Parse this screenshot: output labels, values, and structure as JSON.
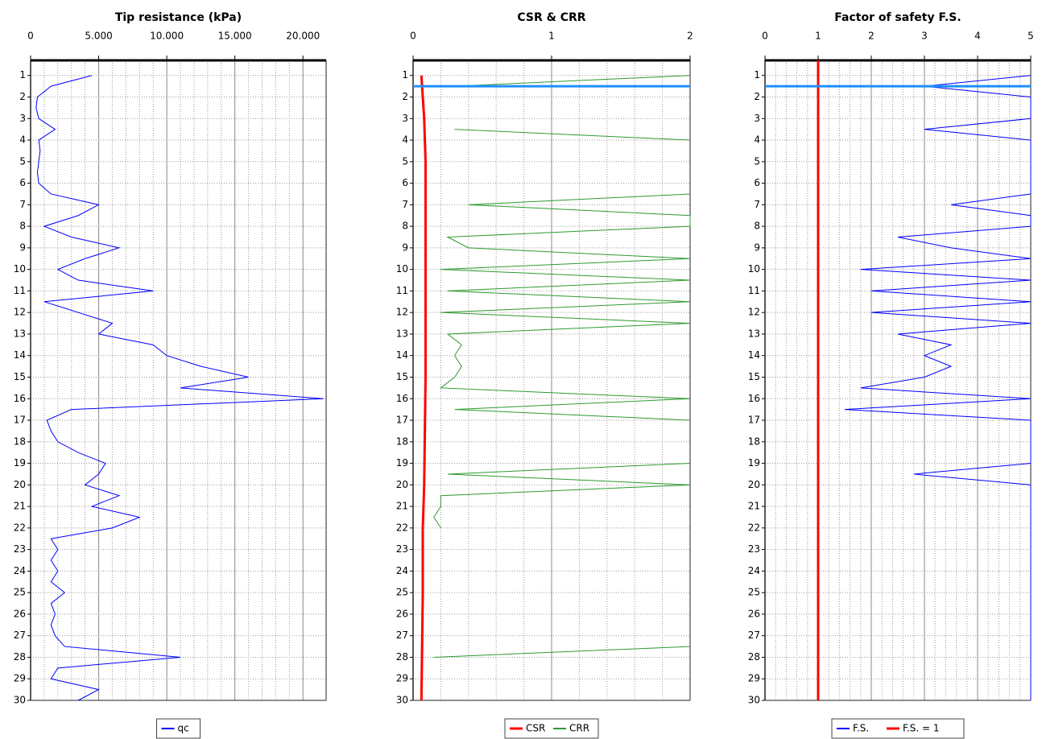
{
  "chart_data": [
    {
      "type": "line",
      "title": "Tip resistance (kPa)",
      "xlim": [
        0,
        21700
      ],
      "xticks": [
        0,
        {
          "value": 5000,
          "label": "5.000"
        },
        {
          "value": 10000,
          "label": "10.000"
        },
        {
          "value": 15000,
          "label": "15.000"
        },
        {
          "value": 20000,
          "label": "20.000"
        }
      ],
      "ylim": [
        0.3,
        30
      ],
      "y_inverted": true,
      "yticks": [
        1,
        2,
        3,
        4,
        5,
        6,
        7,
        8,
        9,
        10,
        11,
        12,
        13,
        14,
        15,
        16,
        17,
        18,
        19,
        20,
        21,
        22,
        23,
        24,
        25,
        26,
        27,
        28,
        29,
        30
      ],
      "grid": true,
      "legend_position": "bottom",
      "series": [
        {
          "name": "qc",
          "color": "#0000ff",
          "y": [
            1,
            1.5,
            2,
            2.5,
            3,
            3.5,
            4,
            4.5,
            5,
            5.5,
            6,
            6.5,
            7,
            7.5,
            8,
            8.5,
            9,
            9.5,
            10,
            10.5,
            11,
            11.5,
            12,
            12.5,
            13,
            13.5,
            14,
            14.5,
            15,
            15.5,
            16,
            16.5,
            17,
            17.5,
            18,
            18.5,
            19,
            19.5,
            20,
            20.5,
            21,
            21.5,
            22,
            22.5,
            23,
            23.5,
            24,
            24.5,
            25,
            25.5,
            26,
            26.5,
            27,
            27.5,
            28,
            28.5,
            29,
            29.5,
            30
          ],
          "values": [
            4500,
            1500,
            500,
            400,
            600,
            1800,
            600,
            700,
            600,
            500,
            600,
            1500,
            5000,
            3500,
            1000,
            3000,
            6500,
            4000,
            2000,
            3500,
            9000,
            1000,
            3500,
            6000,
            5000,
            9000,
            10000,
            12500,
            16000,
            11000,
            21500,
            3000,
            1200,
            1500,
            2000,
            3500,
            5500,
            5000,
            4000,
            6500,
            4500,
            8000,
            6000,
            1500,
            2000,
            1500,
            2000,
            1500,
            2500,
            1500,
            1800,
            1500,
            1800,
            2500,
            11000,
            2000,
            1500,
            5000,
            3500
          ]
        }
      ]
    },
    {
      "type": "line",
      "title": "CSR & CRR",
      "xlim": [
        0,
        2
      ],
      "xticks": [
        0,
        1,
        2
      ],
      "ylim": [
        0.3,
        30
      ],
      "y_inverted": true,
      "yticks": [
        1,
        2,
        3,
        4,
        5,
        6,
        7,
        8,
        9,
        10,
        11,
        12,
        13,
        14,
        15,
        16,
        17,
        18,
        19,
        20,
        21,
        22,
        23,
        24,
        25,
        26,
        27,
        28,
        29,
        30
      ],
      "grid": true,
      "legend_position": "bottom",
      "water_level": 1.5,
      "water_level_color": "#1e90ff",
      "series": [
        {
          "name": "CSR",
          "color": "#ff0000",
          "width": 3,
          "y": [
            1,
            2,
            3,
            5,
            10,
            15,
            20,
            22,
            25,
            30
          ],
          "values": [
            0.06,
            0.07,
            0.08,
            0.09,
            0.09,
            0.09,
            0.08,
            0.07,
            0.07,
            0.06
          ]
        },
        {
          "name": "CRR",
          "color": "#2e9a2e",
          "width": 1,
          "y": [
            1,
            1.5,
            2,
            2.5,
            3,
            3.5,
            4,
            4.5,
            5,
            5.5,
            6,
            6.5,
            7,
            7.5,
            8,
            8.5,
            9,
            9.5,
            10,
            10.5,
            11,
            11.5,
            12,
            12.5,
            13,
            13.5,
            14,
            14.5,
            15,
            15.5,
            16,
            16.5,
            17,
            17.5,
            18,
            18.5,
            19,
            19.5,
            20,
            20.5,
            21,
            21.5,
            22,
            22.5,
            23,
            23.5,
            24,
            24.5,
            25,
            25.5,
            26,
            26.5,
            27,
            27.5,
            28,
            28.5,
            29,
            29.5,
            30
          ],
          "values": [
            2,
            0.3,
            null,
            null,
            null,
            0.3,
            2,
            null,
            null,
            null,
            null,
            2,
            0.4,
            2,
            2,
            0.25,
            0.4,
            2,
            0.2,
            2,
            0.25,
            2,
            0.2,
            2,
            0.25,
            0.35,
            0.3,
            0.35,
            0.3,
            0.2,
            2,
            0.3,
            2,
            null,
            null,
            null,
            2,
            0.25,
            2,
            0.2,
            0.2,
            0.15,
            0.2,
            null,
            null,
            null,
            null,
            null,
            null,
            null,
            null,
            null,
            null,
            2,
            0.15,
            null,
            null,
            null,
            null
          ]
        }
      ]
    },
    {
      "type": "line",
      "title": "Factor of safety F.S.",
      "xlim": [
        0,
        5
      ],
      "xticks": [
        0,
        1,
        2,
        3,
        4,
        5
      ],
      "ylim": [
        0.3,
        30
      ],
      "y_inverted": true,
      "yticks": [
        1,
        2,
        3,
        4,
        5,
        6,
        7,
        8,
        9,
        10,
        11,
        12,
        13,
        14,
        15,
        16,
        17,
        18,
        19,
        20,
        21,
        22,
        23,
        24,
        25,
        26,
        27,
        28,
        29,
        30
      ],
      "grid": true,
      "legend_position": "bottom",
      "water_level": 1.5,
      "water_level_color": "#1e90ff",
      "series": [
        {
          "name": "F.S.",
          "color": "#0000ff",
          "width": 1,
          "y": [
            1,
            1.5,
            2,
            2.5,
            3,
            3.5,
            4,
            4.5,
            5,
            5.5,
            6,
            6.5,
            7,
            7.5,
            8,
            8.5,
            9,
            9.5,
            10,
            10.5,
            11,
            11.5,
            12,
            12.5,
            13,
            13.5,
            14,
            14.5,
            15,
            15.5,
            16,
            16.5,
            17,
            17.5,
            18,
            18.5,
            19,
            19.5,
            20,
            20.5,
            21,
            21.5,
            22,
            22.5,
            23,
            23.5,
            24,
            24.5,
            25,
            25.5,
            26,
            26.5,
            27,
            27.5,
            28,
            28.5,
            29,
            29.5,
            30
          ],
          "values": [
            5,
            3,
            5,
            5,
            5,
            3,
            5,
            5,
            5,
            5,
            5,
            5,
            3.5,
            5,
            5,
            2.5,
            3.5,
            5,
            1.8,
            5,
            2,
            5,
            2,
            5,
            2.5,
            3.5,
            3,
            3.5,
            3,
            1.8,
            5,
            1.5,
            5,
            5,
            5,
            5,
            5,
            2.8,
            5,
            5,
            5,
            5,
            5,
            5,
            5,
            5,
            5,
            5,
            5,
            5,
            5,
            5,
            5,
            5,
            5,
            5,
            5,
            5,
            5
          ]
        },
        {
          "name": "F.S. = 1",
          "color": "#ff0000",
          "width": 3,
          "y": [
            0.3,
            30
          ],
          "values": [
            1,
            1
          ]
        }
      ]
    }
  ]
}
